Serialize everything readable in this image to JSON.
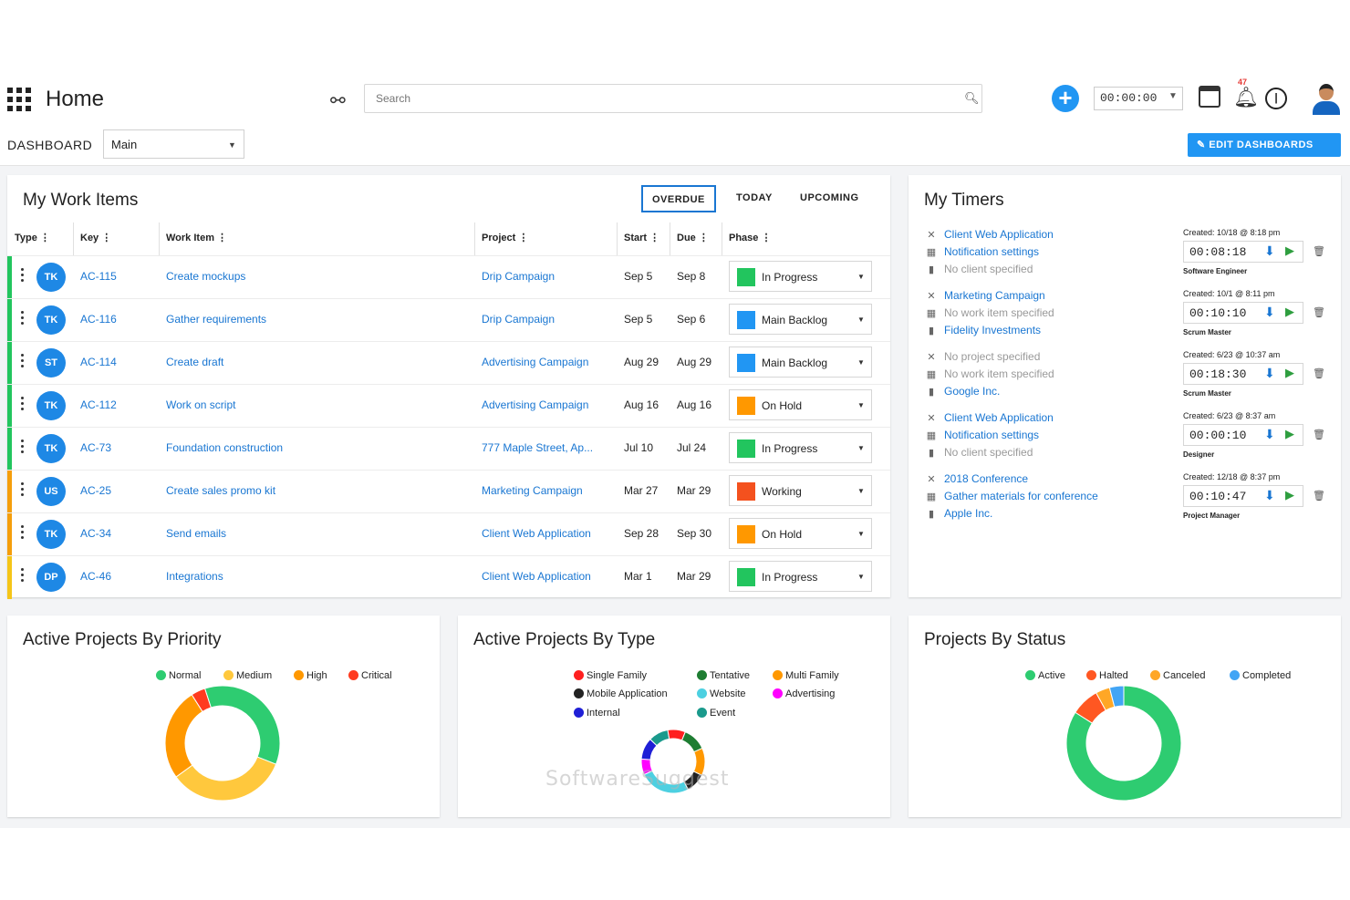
{
  "header": {
    "title": "Home",
    "search_placeholder": "Search",
    "timer": "00:00:00",
    "notification_count": "47"
  },
  "dashboard_bar": {
    "label": "DASHBOARD",
    "selected": "Main",
    "edit_button": "EDIT DASHBOARDS"
  },
  "work_items": {
    "title": "My Work Items",
    "tabs": [
      "OVERDUE",
      "TODAY",
      "UPCOMING"
    ],
    "columns": [
      "Type",
      "Key",
      "Work Item",
      "Project",
      "Start",
      "Due",
      "Phase"
    ],
    "rows": [
      {
        "initials": "TK",
        "key": "AC-115",
        "item": "Create mockups",
        "project": "Drip Campaign",
        "start": "Sep 5",
        "due": "Sep 8",
        "phase": "In Progress",
        "phase_color": "#22c55e",
        "bar_color": "#22c55e"
      },
      {
        "initials": "TK",
        "key": "AC-116",
        "item": "Gather requirements",
        "project": "Drip Campaign",
        "start": "Sep 5",
        "due": "Sep 6",
        "phase": "Main Backlog",
        "phase_color": "#2196f3",
        "bar_color": "#22c55e"
      },
      {
        "initials": "ST",
        "key": "AC-114",
        "item": "Create draft",
        "project": "Advertising Campaign",
        "start": "Aug 29",
        "due": "Aug 29",
        "phase": "Main Backlog",
        "phase_color": "#2196f3",
        "bar_color": "#22c55e"
      },
      {
        "initials": "TK",
        "key": "AC-112",
        "item": "Work on script",
        "project": "Advertising Campaign",
        "start": "Aug 16",
        "due": "Aug 16",
        "phase": "On Hold",
        "phase_color": "#ff9800",
        "bar_color": "#22c55e"
      },
      {
        "initials": "TK",
        "key": "AC-73",
        "item": "Foundation construction",
        "project": "777 Maple Street, Ap...",
        "start": "Jul 10",
        "due": "Jul 24",
        "phase": "In Progress",
        "phase_color": "#22c55e",
        "bar_color": "#22c55e"
      },
      {
        "initials": "US",
        "key": "AC-25",
        "item": "Create sales promo kit",
        "project": "Marketing Campaign",
        "start": "Mar 27",
        "due": "Mar 29",
        "phase": "Working",
        "phase_color": "#f4511e",
        "bar_color": "#f59e0b"
      },
      {
        "initials": "TK",
        "key": "AC-34",
        "item": "Send emails",
        "project": "Client Web Application",
        "start": "Sep 28",
        "due": "Sep 30",
        "phase": "On Hold",
        "phase_color": "#ff9800",
        "bar_color": "#f59e0b"
      },
      {
        "initials": "DP",
        "key": "AC-46",
        "item": "Integrations",
        "project": "Client Web Application",
        "start": "Mar 1",
        "due": "Mar 29",
        "phase": "In Progress",
        "phase_color": "#22c55e",
        "bar_color": "#f5c518"
      }
    ]
  },
  "timers": {
    "title": "My Timers",
    "entries": [
      {
        "project": "Client Web Application",
        "work_item": "Notification settings",
        "client": "No client specified",
        "project_muted": false,
        "item_muted": false,
        "client_muted": true,
        "created": "Created: 10/18 @ 8:18 pm",
        "time": "00:08:18",
        "role": "Software Engineer"
      },
      {
        "project": "Marketing Campaign",
        "work_item": "No work item specified",
        "client": "Fidelity Investments",
        "project_muted": false,
        "item_muted": true,
        "client_muted": false,
        "created": "Created: 10/1 @ 8:11 pm",
        "time": "00:10:10",
        "role": "Scrum Master"
      },
      {
        "project": "No project specified",
        "work_item": "No work item specified",
        "client": "Google Inc.",
        "project_muted": true,
        "item_muted": true,
        "client_muted": false,
        "created": "Created: 6/23 @ 10:37 am",
        "time": "00:18:30",
        "role": "Scrum Master"
      },
      {
        "project": "Client Web Application",
        "work_item": "Notification settings",
        "client": "No client specified",
        "project_muted": false,
        "item_muted": false,
        "client_muted": true,
        "created": "Created: 6/23 @ 8:37 am",
        "time": "00:00:10",
        "role": "Designer"
      },
      {
        "project": "2018 Conference",
        "work_item": "Gather materials for conference",
        "client": "Apple Inc.",
        "project_muted": false,
        "item_muted": false,
        "client_muted": false,
        "created": "Created: 12/18 @ 8:37 pm",
        "time": "00:10:47",
        "role": "Project Manager"
      }
    ]
  },
  "chart_data": [
    {
      "type": "pie",
      "title": "Active Projects By Priority",
      "categories": [
        "Normal",
        "Medium",
        "High",
        "Critical"
      ],
      "values": [
        36,
        34,
        26,
        4
      ],
      "colors": [
        "#2ecc71",
        "#ffc83d",
        "#ff9800",
        "#ff3b1f"
      ]
    },
    {
      "type": "pie",
      "title": "Active Projects By Type",
      "categories": [
        "Single Family",
        "Tentative",
        "Multi Family",
        "Mobile Application",
        "Website",
        "Advertising",
        "Internal",
        "Event"
      ],
      "values": [
        9,
        12,
        14,
        10,
        26,
        8,
        11,
        10
      ],
      "colors": [
        "#ff2020",
        "#1e7d32",
        "#ff9800",
        "#222222",
        "#4dd0e1",
        "#ff00ff",
        "#1f1fd6",
        "#1a9a8c"
      ]
    },
    {
      "type": "pie",
      "title": "Projects By Status",
      "categories": [
        "Active",
        "Halted",
        "Canceled",
        "Completed"
      ],
      "values": [
        84,
        8,
        4,
        4
      ],
      "colors": [
        "#2ecc71",
        "#ff5722",
        "#ffa726",
        "#42a5f5"
      ]
    }
  ],
  "watermark": "SoftwareSuggest"
}
